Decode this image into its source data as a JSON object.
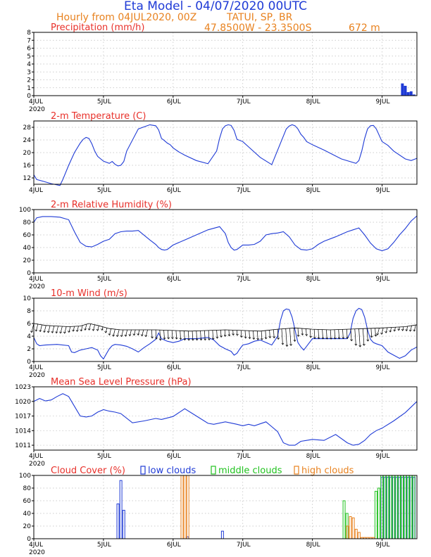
{
  "header": {
    "title": "Eta Model - 04/07/2020 00UTC",
    "subtitle_left": "Hourly from 04JUL2020, 00Z",
    "location": "TATUI, SP, BR",
    "coords": "47.8500W - 23.3500S",
    "elevation": "672  m"
  },
  "colors": {
    "blue": "#1f3bd6",
    "red": "#e8302a",
    "orange": "#e8821f",
    "green": "#21c21f",
    "black": "#000000"
  },
  "chart_data": [
    {
      "id": "precip",
      "type": "bar",
      "title": "Precipitation (mm/h)",
      "ylim": [
        0,
        8
      ],
      "yticks": [
        0,
        1,
        2,
        3,
        4,
        5,
        6,
        7,
        8
      ],
      "xlim": [
        0,
        132
      ],
      "xticks": [
        {
          "t": 0,
          "label": "4JUL"
        },
        {
          "t": 24,
          "label": "5JUL"
        },
        {
          "t": 48,
          "label": "6JUL"
        },
        {
          "t": 72,
          "label": "7JUL"
        },
        {
          "t": 96,
          "label": "8JUL"
        },
        {
          "t": 120,
          "label": "9JUL"
        }
      ],
      "year_label": "2020",
      "series": [
        {
          "name": "precipitation",
          "color": "blue",
          "t": [
            127,
            128,
            129,
            130,
            131
          ],
          "values": [
            1.5,
            1.2,
            0.4,
            0.5,
            0.1
          ]
        }
      ]
    },
    {
      "id": "temp",
      "type": "line",
      "title": "2-m Temperature (C)",
      "ylim": [
        10,
        30
      ],
      "yticks": [
        12,
        16,
        20,
        24,
        28
      ],
      "xlim": [
        0,
        132
      ],
      "xticks": [
        {
          "t": 0,
          "label": "4JUL"
        },
        {
          "t": 24,
          "label": "5JUL"
        },
        {
          "t": 48,
          "label": "6JUL"
        },
        {
          "t": 72,
          "label": "7JUL"
        },
        {
          "t": 96,
          "label": "8JUL"
        },
        {
          "t": 120,
          "label": "9JUL"
        }
      ],
      "year_label": "",
      "series": [
        {
          "name": "temperature",
          "color": "blue",
          "t": [
            0,
            1,
            3,
            6,
            9,
            10,
            12,
            14,
            16,
            17,
            18,
            19,
            20,
            21,
            22,
            24,
            26,
            27,
            28,
            29,
            30,
            31,
            32,
            36,
            40,
            42,
            43,
            44,
            45,
            46,
            47,
            48,
            50,
            52,
            56,
            60,
            63,
            64,
            65,
            66,
            67,
            68,
            69,
            70,
            72,
            74,
            78,
            82,
            87,
            88,
            89,
            90,
            91,
            92,
            93,
            94,
            96,
            100,
            106,
            111,
            112,
            113,
            114,
            115,
            116,
            117,
            118,
            120,
            122,
            124,
            128,
            130,
            132
          ],
          "values": [
            13.0,
            11.5,
            11.0,
            10.2,
            9.6,
            11.5,
            16.0,
            20.0,
            23.0,
            24.2,
            24.8,
            24.5,
            22.8,
            20.5,
            18.8,
            17.3,
            16.6,
            17.2,
            16.3,
            15.8,
            16.0,
            17.2,
            20.5,
            27.5,
            28.8,
            28.5,
            27.2,
            24.5,
            23.8,
            23.0,
            22.5,
            21.5,
            20.2,
            19.2,
            17.5,
            16.5,
            20.5,
            24.5,
            27.5,
            28.5,
            28.8,
            28.6,
            27.0,
            24.2,
            23.5,
            21.8,
            18.5,
            16.2,
            27.5,
            28.4,
            28.8,
            28.5,
            27.5,
            25.8,
            24.8,
            23.5,
            22.5,
            20.8,
            18.0,
            16.6,
            17.5,
            20.5,
            24.5,
            27.5,
            28.5,
            28.6,
            27.5,
            23.5,
            22.3,
            20.5,
            18.0,
            17.5,
            18.2
          ]
        }
      ]
    },
    {
      "id": "rh",
      "type": "line",
      "title": "2-m Relative Humidity (%)",
      "ylim": [
        0,
        100
      ],
      "yticks": [
        0,
        20,
        40,
        60,
        80,
        100
      ],
      "xlim": [
        0,
        132
      ],
      "xticks": [
        {
          "t": 0,
          "label": "4JUL"
        },
        {
          "t": 24,
          "label": "5JUL"
        },
        {
          "t": 48,
          "label": "6JUL"
        },
        {
          "t": 72,
          "label": "7JUL"
        },
        {
          "t": 96,
          "label": "8JUL"
        },
        {
          "t": 120,
          "label": "9JUL"
        }
      ],
      "year_label": "2020",
      "series": [
        {
          "name": "relative humidity",
          "color": "blue",
          "t": [
            0,
            1,
            3,
            6,
            9,
            12,
            14,
            16,
            18,
            20,
            22,
            24,
            26,
            28,
            30,
            32,
            34,
            36,
            40,
            42,
            43,
            44,
            45,
            46,
            48,
            52,
            56,
            60,
            64,
            66,
            67,
            68,
            69,
            70,
            72,
            74,
            76,
            78,
            80,
            82,
            84,
            86,
            88,
            90,
            92,
            94,
            96,
            98,
            100,
            104,
            108,
            110,
            112,
            114,
            116,
            118,
            120,
            122,
            124,
            126,
            128,
            130,
            132
          ],
          "values": [
            80,
            87,
            89,
            89,
            88,
            84,
            65,
            48,
            42,
            41,
            45,
            50,
            53,
            62,
            65,
            66,
            66,
            67,
            52,
            45,
            40,
            37,
            36,
            37,
            44,
            52,
            60,
            68,
            73,
            62,
            48,
            40,
            36,
            37,
            44,
            44,
            45,
            50,
            60,
            62,
            63,
            65,
            57,
            44,
            37,
            36,
            38,
            45,
            50,
            57,
            65,
            68,
            71,
            60,
            47,
            38,
            35,
            38,
            48,
            60,
            70,
            82,
            90
          ]
        }
      ]
    },
    {
      "id": "wind",
      "type": "line",
      "title": "10-m Wind (m/s)",
      "ylim": [
        0,
        10
      ],
      "yticks": [
        0,
        2,
        4,
        6,
        8,
        10
      ],
      "xlim": [
        0,
        132
      ],
      "xticks": [
        {
          "t": 0,
          "label": "4JUL"
        },
        {
          "t": 24,
          "label": "5JUL"
        },
        {
          "t": 48,
          "label": "6JUL"
        },
        {
          "t": 72,
          "label": "7JUL"
        },
        {
          "t": 96,
          "label": "8JUL"
        },
        {
          "t": 120,
          "label": "9JUL"
        }
      ],
      "year_label": "2020",
      "series": [
        {
          "name": "wind speed",
          "color": "blue",
          "t": [
            0,
            1,
            2,
            4,
            8,
            12,
            13,
            14,
            16,
            18,
            20,
            22,
            23,
            24,
            25,
            26,
            27,
            28,
            30,
            32,
            34,
            36,
            38,
            40,
            42,
            43,
            44,
            46,
            48,
            50,
            52,
            56,
            60,
            62,
            64,
            66,
            68,
            69,
            70,
            71,
            72,
            74,
            76,
            78,
            80,
            82,
            84,
            85,
            86,
            87,
            88,
            89,
            90,
            91,
            92,
            93,
            96,
            100,
            104,
            108,
            109,
            110,
            111,
            112,
            113,
            114,
            115,
            116,
            117,
            118,
            120,
            121,
            122,
            124,
            126,
            128,
            130,
            132
          ],
          "values": [
            3.8,
            2.8,
            2.5,
            2.6,
            2.7,
            2.5,
            1.5,
            1.4,
            1.8,
            2.0,
            2.2,
            1.8,
            0.9,
            0.4,
            1.2,
            2.0,
            2.5,
            2.7,
            2.6,
            2.4,
            2.0,
            1.5,
            2.2,
            2.8,
            3.5,
            4.5,
            3.6,
            3.2,
            3.0,
            3.2,
            3.6,
            3.6,
            3.8,
            3.4,
            2.5,
            2.0,
            1.6,
            1.0,
            1.3,
            2.0,
            2.6,
            2.8,
            3.2,
            3.4,
            3.0,
            2.6,
            4.0,
            6.5,
            8.0,
            8.3,
            8.2,
            7.0,
            5.0,
            3.0,
            2.3,
            1.8,
            3.6,
            3.6,
            3.6,
            3.6,
            4.5,
            6.8,
            8.0,
            8.4,
            8.2,
            7.0,
            5.0,
            3.5,
            3.0,
            2.8,
            2.5,
            2.0,
            1.5,
            1.0,
            0.5,
            0.9,
            1.8,
            2.3
          ]
        },
        {
          "name": "wind barb baseline",
          "color": "black",
          "t": [
            0,
            4,
            8,
            12,
            16,
            19,
            22,
            26,
            30,
            36,
            42,
            48,
            54,
            60,
            66,
            72,
            78,
            84,
            90,
            96,
            102,
            108,
            114,
            120,
            124,
            128,
            132
          ],
          "values": [
            6.0,
            5.7,
            5.6,
            5.5,
            5.6,
            6.0,
            5.7,
            5.2,
            5.0,
            5.0,
            5.0,
            4.9,
            4.8,
            4.9,
            5.0,
            4.9,
            4.8,
            5.1,
            5.3,
            5.1,
            5.0,
            5.1,
            5.2,
            5.3,
            5.4,
            5.5,
            5.8
          ]
        }
      ]
    },
    {
      "id": "mslp",
      "type": "line",
      "title": "Mean Sea Level Pressure (hPa)",
      "ylim": [
        1010,
        1023
      ],
      "yticks": [
        1011,
        1014,
        1017,
        1020,
        1023
      ],
      "xlim": [
        0,
        132
      ],
      "xticks": [
        {
          "t": 0,
          "label": "4JUL"
        },
        {
          "t": 24,
          "label": "5JUL"
        },
        {
          "t": 48,
          "label": "6JUL"
        },
        {
          "t": 72,
          "label": "7JUL"
        },
        {
          "t": 96,
          "label": "8JUL"
        },
        {
          "t": 120,
          "label": "9JUL"
        }
      ],
      "year_label": "2020",
      "series": [
        {
          "name": "pressure",
          "color": "blue",
          "t": [
            0,
            2,
            4,
            6,
            8,
            10,
            12,
            14,
            16,
            18,
            20,
            22,
            24,
            26,
            28,
            30,
            34,
            38,
            42,
            44,
            48,
            52,
            56,
            60,
            62,
            66,
            70,
            72,
            74,
            76,
            80,
            84,
            86,
            88,
            90,
            92,
            94,
            96,
            100,
            104,
            108,
            110,
            112,
            114,
            116,
            118,
            120,
            124,
            128,
            132
          ],
          "values": [
            1020.0,
            1020.6,
            1020.1,
            1020.3,
            1021.0,
            1021.6,
            1021.0,
            1019.0,
            1017.0,
            1016.8,
            1017.0,
            1017.8,
            1018.3,
            1018.0,
            1017.8,
            1017.5,
            1015.6,
            1016.0,
            1016.5,
            1016.3,
            1016.9,
            1018.5,
            1017.0,
            1015.5,
            1015.3,
            1015.8,
            1015.3,
            1015.0,
            1015.3,
            1015.0,
            1015.8,
            1013.8,
            1011.5,
            1011.0,
            1011.0,
            1011.8,
            1012.0,
            1012.2,
            1012.0,
            1013.2,
            1011.5,
            1011.0,
            1011.2,
            1012.0,
            1013.2,
            1014.0,
            1014.5,
            1016.0,
            1017.7,
            1020.0
          ]
        }
      ]
    },
    {
      "id": "clouds",
      "type": "bar",
      "title": "Cloud Cover (%)",
      "legend": [
        "low clouds",
        "middle clouds",
        "high clouds"
      ],
      "ylim": [
        0,
        100
      ],
      "yticks": [
        0,
        20,
        40,
        60,
        80,
        100
      ],
      "xlim": [
        0,
        132
      ],
      "xticks": [
        {
          "t": 0,
          "label": "4JUL"
        },
        {
          "t": 24,
          "label": "5JUL"
        },
        {
          "t": 48,
          "label": "6JUL"
        },
        {
          "t": 72,
          "label": "7JUL"
        },
        {
          "t": 96,
          "label": "8JUL"
        },
        {
          "t": 120,
          "label": "9JUL"
        }
      ],
      "year_label": "2020",
      "series": [
        {
          "name": "low clouds",
          "color": "blue",
          "t": [
            29,
            30,
            31,
            53,
            65,
            120,
            121,
            122,
            123,
            124,
            125,
            126,
            127,
            128,
            129,
            130,
            131
          ],
          "values": [
            55,
            92,
            45,
            3,
            12,
            97,
            97,
            97,
            97,
            97,
            97,
            97,
            97,
            97,
            97,
            97,
            97
          ]
        },
        {
          "name": "middle clouds",
          "color": "green",
          "t": [
            107,
            108,
            118,
            119,
            120,
            121,
            122,
            123,
            124,
            125,
            126,
            127,
            128,
            129,
            130,
            131
          ],
          "values": [
            60,
            40,
            75,
            80,
            100,
            100,
            100,
            100,
            100,
            100,
            100,
            100,
            100,
            100,
            100,
            100
          ]
        },
        {
          "name": "high clouds",
          "color": "orange",
          "t": [
            51,
            52,
            53,
            108,
            109,
            110,
            111,
            112,
            113,
            114,
            115,
            116,
            117
          ],
          "values": [
            100,
            100,
            100,
            20,
            35,
            33,
            15,
            10,
            2,
            2,
            2,
            2,
            2
          ]
        }
      ]
    }
  ]
}
